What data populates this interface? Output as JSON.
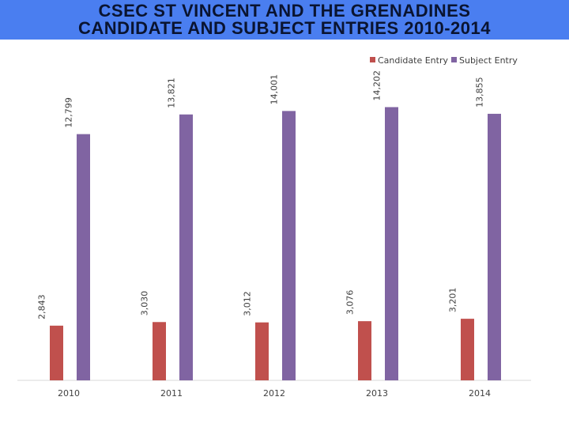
{
  "header": {
    "title_line1": "CSEC ST VINCENT AND THE GRENADINES",
    "title_line2": "CANDIDATE AND SUBJECT ENTRIES 2010-2014"
  },
  "chart_data": {
    "type": "bar",
    "title": "CSEC ST VINCENT AND THE GRENADINES CANDIDATE AND SUBJECT ENTRIES 2010-2014",
    "xlabel": "",
    "ylabel": "",
    "categories": [
      "2010",
      "2011",
      "2012",
      "2013",
      "2014"
    ],
    "series": [
      {
        "name": "Candidate Entry",
        "color": "#c0504d",
        "values": [
          2843,
          3030,
          3012,
          3076,
          3201
        ],
        "labels": [
          "2,843",
          "3,030",
          "3,012",
          "3,076",
          "3,201"
        ]
      },
      {
        "name": "Subject Entry",
        "color": "#8064a2",
        "values": [
          12799,
          13821,
          14001,
          14202,
          13855
        ],
        "labels": [
          "12,799",
          "13,821",
          "14,001",
          "14,202",
          "13,855"
        ]
      }
    ],
    "ylim": [
      0,
      15660
    ],
    "grid": false,
    "legend": "top-right"
  }
}
